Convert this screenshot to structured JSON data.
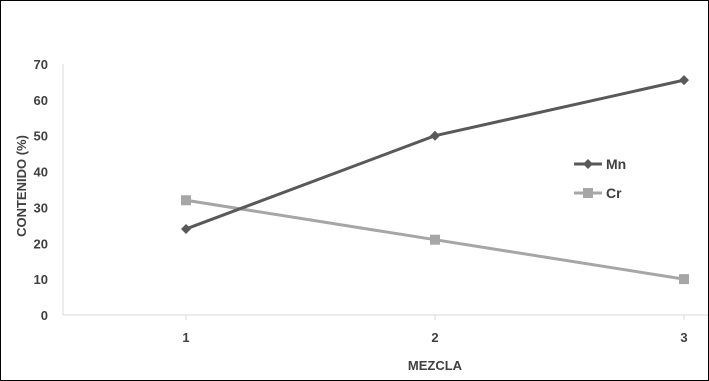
{
  "chart_data": {
    "type": "line",
    "title": "",
    "xlabel": "MEZCLA",
    "ylabel": "CONTENIDO  (%)",
    "x": [
      1,
      2,
      3
    ],
    "xtick_labels": [
      "1",
      "2",
      "3"
    ],
    "ylim": [
      0,
      70
    ],
    "yticks": [
      0,
      10,
      20,
      30,
      40,
      50,
      60,
      70
    ],
    "grid": false,
    "legend_position": "right",
    "series": [
      {
        "name": "Mn",
        "values": [
          24,
          50,
          65.5
        ],
        "color": "#595959",
        "marker": "diamond"
      },
      {
        "name": "Cr",
        "values": [
          32,
          21,
          10
        ],
        "color": "#a6a6a6",
        "marker": "square"
      }
    ]
  }
}
